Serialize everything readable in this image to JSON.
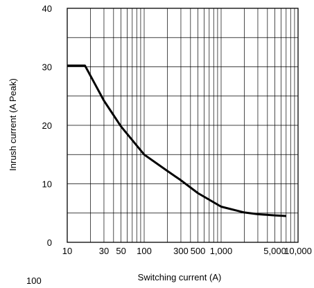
{
  "chart_data": {
    "type": "line",
    "title": "",
    "xlabel": "Switching current (A)",
    "ylabel": "Inrush current (A Peak)",
    "x_scale": "log",
    "xlim": [
      10,
      10000
    ],
    "ylim": [
      0,
      40
    ],
    "grid": true,
    "x_tick_labels": [
      {
        "value": 10,
        "label": "10"
      },
      {
        "value": 30,
        "label": "30"
      },
      {
        "value": 50,
        "label": "50"
      },
      {
        "value": 100,
        "label": "100"
      },
      {
        "value": 300,
        "label": "300"
      },
      {
        "value": 500,
        "label": "500"
      },
      {
        "value": 1000,
        "label": "1,000"
      },
      {
        "value": 5000,
        "label": "5,000"
      },
      {
        "value": 10000,
        "label": "10,000"
      }
    ],
    "y_ticks": [
      {
        "value": 0,
        "label": "0"
      },
      {
        "value": 10,
        "label": "10"
      },
      {
        "value": 20,
        "label": "20"
      },
      {
        "value": 30,
        "label": "30"
      },
      {
        "value": 40,
        "label": "40"
      }
    ],
    "y_minor_gridlines": [
      5,
      15,
      25,
      35
    ],
    "series": [
      {
        "x": [
          10,
          17,
          20,
          30,
          50,
          100,
          200,
          300,
          500,
          1000,
          2000,
          3000,
          5000,
          7000
        ],
        "y": [
          30.2,
          30.2,
          28.5,
          24.2,
          19.8,
          15.0,
          12.2,
          10.6,
          8.4,
          6.1,
          5.1,
          4.8,
          4.6,
          4.5
        ]
      }
    ],
    "stray_text": "100"
  },
  "colors": {
    "line": "#000000",
    "grid": "#000000",
    "background": "#ffffff"
  }
}
